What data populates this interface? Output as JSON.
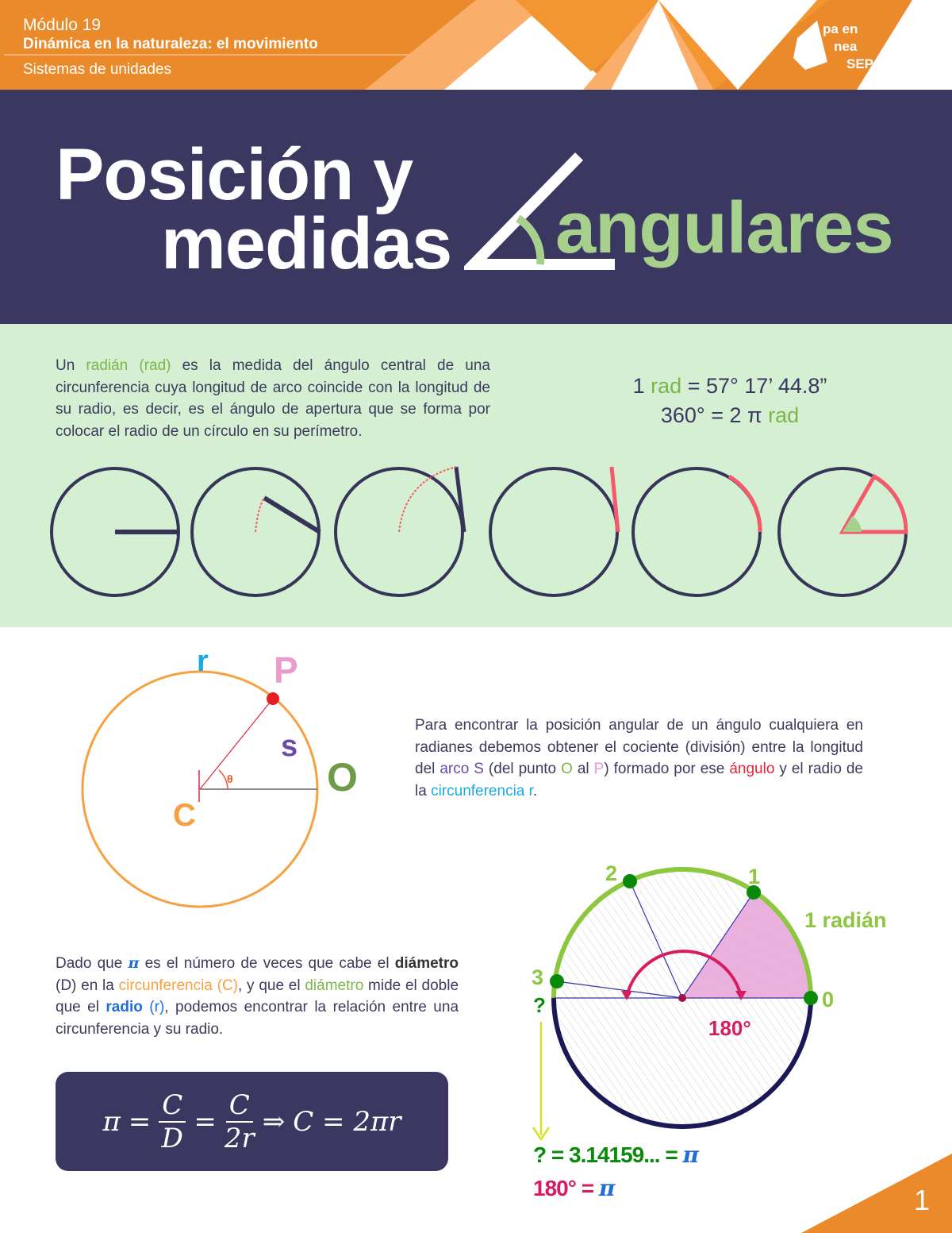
{
  "header": {
    "module": "Módulo 19",
    "course": "Dinámica en la naturaleza: el movimiento",
    "section": "Sistemas de unidades",
    "logo_text": "Prepa en línea SEP"
  },
  "title": {
    "line1": "Posición y",
    "line2": "medidas",
    "line3": "angulares"
  },
  "intro": {
    "segments": [
      "Un ",
      "radián (rad)",
      " es la medida del ángulo central de una circunferencia cuya longitud de arco coincide con la longitud de su radio, es decir, es el ángulo de apertura que se forma por colocar el radio de un círculo en su perímetro."
    ]
  },
  "equivalences": {
    "line1_a": "1 ",
    "line1_b": "rad",
    "line1_c": " = 57° 17’ 44.8”",
    "line2_a": "360° = 2 π ",
    "line2_b": "rad"
  },
  "position_diagram": {
    "P": "P",
    "r": "r",
    "s": "s",
    "O": "O",
    "C": "C",
    "theta": "θ"
  },
  "position_text": {
    "segments": [
      "Para encontrar la posición angular de un ángulo cualquiera en radianes debemos obtener el cociente (división) entre la longitud del ",
      "arco S",
      " (del punto ",
      "O",
      " al ",
      "P",
      ") formado por ese ",
      "ángulo",
      " y el radio de la ",
      "circunferencia r",
      "."
    ]
  },
  "pi_text": {
    "segments": [
      "Dado que ",
      "π",
      " es el número de veces que cabe el ",
      "diámetro",
      " (D) en la ",
      "circunferencia (C)",
      ", y que el ",
      "diámetro",
      " mide el doble que el ",
      "radio",
      " (r)",
      ", podemos encontrar la relación entre una circunferencia y su radio."
    ]
  },
  "formula": {
    "pi": "π",
    "eq": "=",
    "C": "C",
    "D": "D",
    "two_r": "2r",
    "implies": "⇒",
    "result": "C = 2πr"
  },
  "radian_diagram": {
    "labels": [
      "0",
      "1",
      "2",
      "3"
    ],
    "question": "?",
    "one_radian": "1 radián",
    "angle": "180°",
    "result1_a": "? = 3.14159... = ",
    "result1_b": "π",
    "result2_a": "180° = ",
    "result2_b": "π"
  },
  "page_number": "1",
  "colors": {
    "orange": "#EA8A2A",
    "navy": "#3A3760",
    "light_green": "#D5EFD2",
    "title_green": "#A8D08D",
    "arc_red": "#F45A6B"
  }
}
